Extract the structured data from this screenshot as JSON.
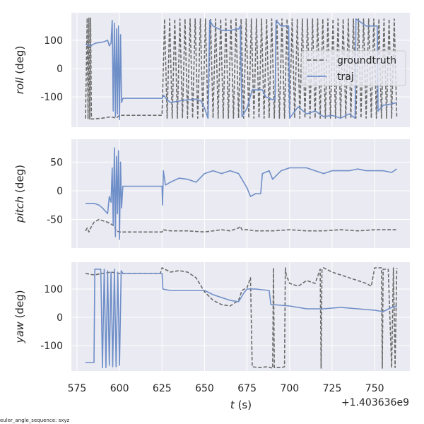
{
  "chart_data": {
    "type": "line",
    "xlabel_var": "t",
    "xlabel_unit": " (s)",
    "x_offset_label": "+1.403636e9",
    "xlim": [
      571.7,
      770.7
    ],
    "xticks": [
      575,
      600,
      625,
      650,
      675,
      700,
      725,
      750
    ],
    "footnote": "euler_angle_sequence: sxyz",
    "legend": {
      "placement": "top-right of first panel",
      "entries": [
        "groundtruth",
        "traj"
      ]
    },
    "colors": {
      "groundtruth": "#6b6b6b",
      "traj": "#6f8fc8",
      "background": "#eaeaf2",
      "grid": "#ffffff"
    },
    "panels": [
      {
        "name": "roll",
        "ylabel_var": "roll",
        "ylabel_unit": " (deg)",
        "ylim": [
          -207,
          197
        ],
        "yticks": [
          -100,
          0,
          100
        ],
        "series": [
          {
            "name": "groundtruth",
            "x": [
              580,
              581,
              581.5,
              582,
              582.5,
              583,
              583.5,
              584,
              590,
              595,
              598,
              600,
              601,
              625,
              626.5,
              628,
              629.5,
              631,
              632.5,
              634,
              635.5,
              637,
              638.5,
              640,
              641.5,
              643,
              644.5,
              646,
              647.5,
              649,
              650.5,
              652,
              653.5,
              655,
              656.5,
              658,
              659.5,
              661,
              662.5,
              664,
              665.5,
              667,
              668.5,
              670,
              671.5,
              673,
              674.5,
              676,
              677.5,
              679,
              680.5,
              682,
              683.5,
              685,
              686.5,
              688,
              689.5,
              691,
              692.5,
              694,
              695.5,
              697,
              698.5,
              700,
              701.5,
              703,
              704.5,
              706,
              707.5,
              709,
              710.5,
              712,
              713.5,
              715,
              716.5,
              718,
              719.5,
              721,
              722.5,
              724,
              725.5,
              727,
              728.5,
              730,
              731.5,
              733,
              734.5,
              736,
              737.5,
              739,
              740.5,
              742,
              743.5,
              745,
              746.5,
              748,
              749.5,
              751,
              752.5,
              754,
              755.5,
              757,
              758.5,
              760,
              761.5,
              763
            ],
            "y": [
              -176,
              178,
              -178,
              178,
              -178,
              178,
              -178,
              -178,
              -175,
              -170,
              -175,
              -165,
              -165,
              -165,
              175,
              -175,
              175,
              -175,
              175,
              -175,
              175,
              -175,
              175,
              -175,
              175,
              -175,
              175,
              -175,
              175,
              -175,
              175,
              -175,
              175,
              -175,
              175,
              -175,
              175,
              -175,
              175,
              -175,
              175,
              -175,
              175,
              -175,
              175,
              -175,
              175,
              -175,
              175,
              -175,
              175,
              -175,
              175,
              -175,
              175,
              -175,
              175,
              -175,
              175,
              -175,
              175,
              -175,
              175,
              -175,
              175,
              -175,
              175,
              -175,
              175,
              -175,
              175,
              -175,
              175,
              -175,
              175,
              -175,
              175,
              -175,
              175,
              -175,
              175,
              -175,
              175,
              -175,
              175,
              -175,
              175,
              -175,
              175,
              -175,
              175,
              -175,
              175,
              -175,
              175,
              -175,
              175,
              -175,
              175,
              -175,
              175,
              -175,
              175,
              -175,
              175,
              -175
            ]
          },
          {
            "name": "traj",
            "x": [
              580,
              583,
              586,
              589,
              591,
              593,
              594,
              595,
              595.7,
              596.3,
              597,
              597.6,
              598.2,
              598.8,
              599.4,
              600,
              600.6,
              601.2,
              602,
              625,
              626,
              628,
              630,
              635,
              640,
              645,
              648,
              650,
              652,
              653,
              655,
              660,
              665,
              670,
              671,
              672,
              675,
              678,
              684,
              686,
              690,
              691.5,
              692,
              695,
              699.5,
              700,
              705,
              710,
              715,
              720,
              725,
              730,
              735,
              738.5,
              739,
              745,
              751.5,
              752,
              755,
              760,
              763
            ],
            "y": [
              85,
              80,
              90,
              92,
              95,
              100,
              80,
              90,
              170,
              -150,
              160,
              -170,
              140,
              -160,
              150,
              -180,
              120,
              -120,
              -105,
              -105,
              -95,
              -110,
              -120,
              -115,
              -110,
              -108,
              -115,
              -140,
              -175,
              170,
              150,
              135,
              135,
              140,
              150,
              -170,
              -140,
              -75,
              -75,
              -100,
              -110,
              -110,
              170,
              150,
              150,
              -175,
              -135,
              -160,
              -150,
              -170,
              -165,
              -175,
              -160,
              -175,
              175,
              150,
              150,
              -150,
              -130,
              -125,
              -120
            ]
          }
        ]
      },
      {
        "name": "pitch",
        "ylabel_var": "pitch",
        "ylabel_unit": " (deg)",
        "ylim": [
          -100,
          90
        ],
        "yticks": [
          -50,
          0,
          50
        ],
        "series": [
          {
            "name": "groundtruth",
            "x": [
              580,
              581,
              582,
              583,
              585,
              588,
              590,
              593,
              595,
              597,
              598,
              600,
              610,
              625,
              625.5,
              630,
              640,
              650,
              660,
              665,
              670,
              671,
              672,
              675,
              680,
              690,
              700,
              710,
              720,
              730,
              740,
              750,
              763
            ],
            "y": [
              -70,
              -65,
              -72,
              -65,
              -55,
              -50,
              -52,
              -55,
              -58,
              -62,
              -70,
              -72,
              -72,
              -72,
              -68,
              -70,
              -70,
              -72,
              -68,
              -70,
              -65,
              -62,
              -68,
              -68,
              -70,
              -70,
              -68,
              -70,
              -70,
              -68,
              -70,
              -68,
              -68
            ]
          },
          {
            "name": "traj",
            "x": [
              580,
              585,
              588,
              590,
              593,
              594,
              595,
              595.7,
              596.3,
              597,
              597.6,
              598.2,
              598.8,
              599.4,
              600,
              600.6,
              601.2,
              602,
              625,
              625.3,
              625.8,
              627,
              630,
              635,
              640,
              645,
              650,
              655,
              660,
              665,
              670,
              672,
              675,
              677,
              680,
              683,
              684,
              688,
              690,
              695,
              700,
              705,
              710,
              715,
              720,
              725,
              730,
              735,
              740,
              745,
              750,
              755,
              760,
              763
            ],
            "y": [
              -22,
              -22,
              -25,
              -30,
              -40,
              -10,
              -20,
              40,
              -60,
              75,
              -80,
              60,
              -40,
              70,
              -85,
              50,
              -30,
              8,
              8,
              -25,
              35,
              10,
              15,
              22,
              20,
              15,
              30,
              35,
              30,
              35,
              30,
              20,
              5,
              -10,
              -5,
              -5,
              30,
              35,
              20,
              35,
              40,
              40,
              40,
              35,
              30,
              35,
              35,
              35,
              38,
              35,
              35,
              35,
              32,
              38
            ]
          }
        ]
      },
      {
        "name": "yaw",
        "ylabel_var": "yaw",
        "ylabel_unit": " (deg)",
        "ylim": [
          -190,
          195
        ],
        "yticks": [
          -100,
          0,
          100
        ],
        "series": [
          {
            "name": "groundtruth",
            "x": [
              580,
              585,
              590,
              595,
              600,
              610,
              624,
              625,
              630,
              635,
              640,
              645,
              650,
              655,
              660,
              665,
              670,
              672,
              675,
              677,
              678,
              682,
              687,
              690,
              690.5,
              691,
              695,
              697,
              697.5,
              698,
              700,
              705,
              710,
              715,
              718,
              718.5,
              719,
              720,
              725,
              730,
              735,
              740,
              745,
              748,
              750,
              754,
              754.5,
              755,
              758,
              760,
              761,
              762,
              763
            ],
            "y": [
              155,
              150,
              155,
              160,
              155,
              155,
              155,
              175,
              160,
              165,
              160,
              140,
              90,
              60,
              45,
              40,
              60,
              95,
              105,
              140,
              -175,
              -178,
              -175,
              -180,
              175,
              -178,
              -178,
              -175,
              175,
              150,
              120,
              110,
              130,
              120,
              170,
              -180,
              170,
              175,
              160,
              150,
              140,
              130,
              120,
              110,
              175,
              175,
              -180,
              170,
              170,
              -178,
              175,
              -178,
              175
            ]
          },
          {
            "name": "traj",
            "x": [
              580,
              585,
              585.5,
              589,
              590,
              591,
              592,
              593,
              594,
              595,
              596,
              597,
              598,
              599,
              600,
              601,
              602,
              625,
              625.5,
              630,
              640,
              650,
              655,
              660,
              665,
              670,
              673,
              675,
              680,
              688,
              689,
              690,
              700,
              710,
              720,
              730,
              740,
              750,
              755,
              760,
              763
            ],
            "y": [
              -160,
              -160,
              170,
              170,
              -178,
              170,
              -178,
              165,
              -170,
              160,
              -175,
              170,
              -175,
              160,
              -170,
              165,
              155,
              155,
              100,
              95,
              95,
              95,
              80,
              70,
              60,
              55,
              85,
              100,
              100,
              95,
              45,
              45,
              40,
              30,
              30,
              35,
              30,
              25,
              20,
              35,
              40
            ]
          }
        ]
      }
    ]
  }
}
